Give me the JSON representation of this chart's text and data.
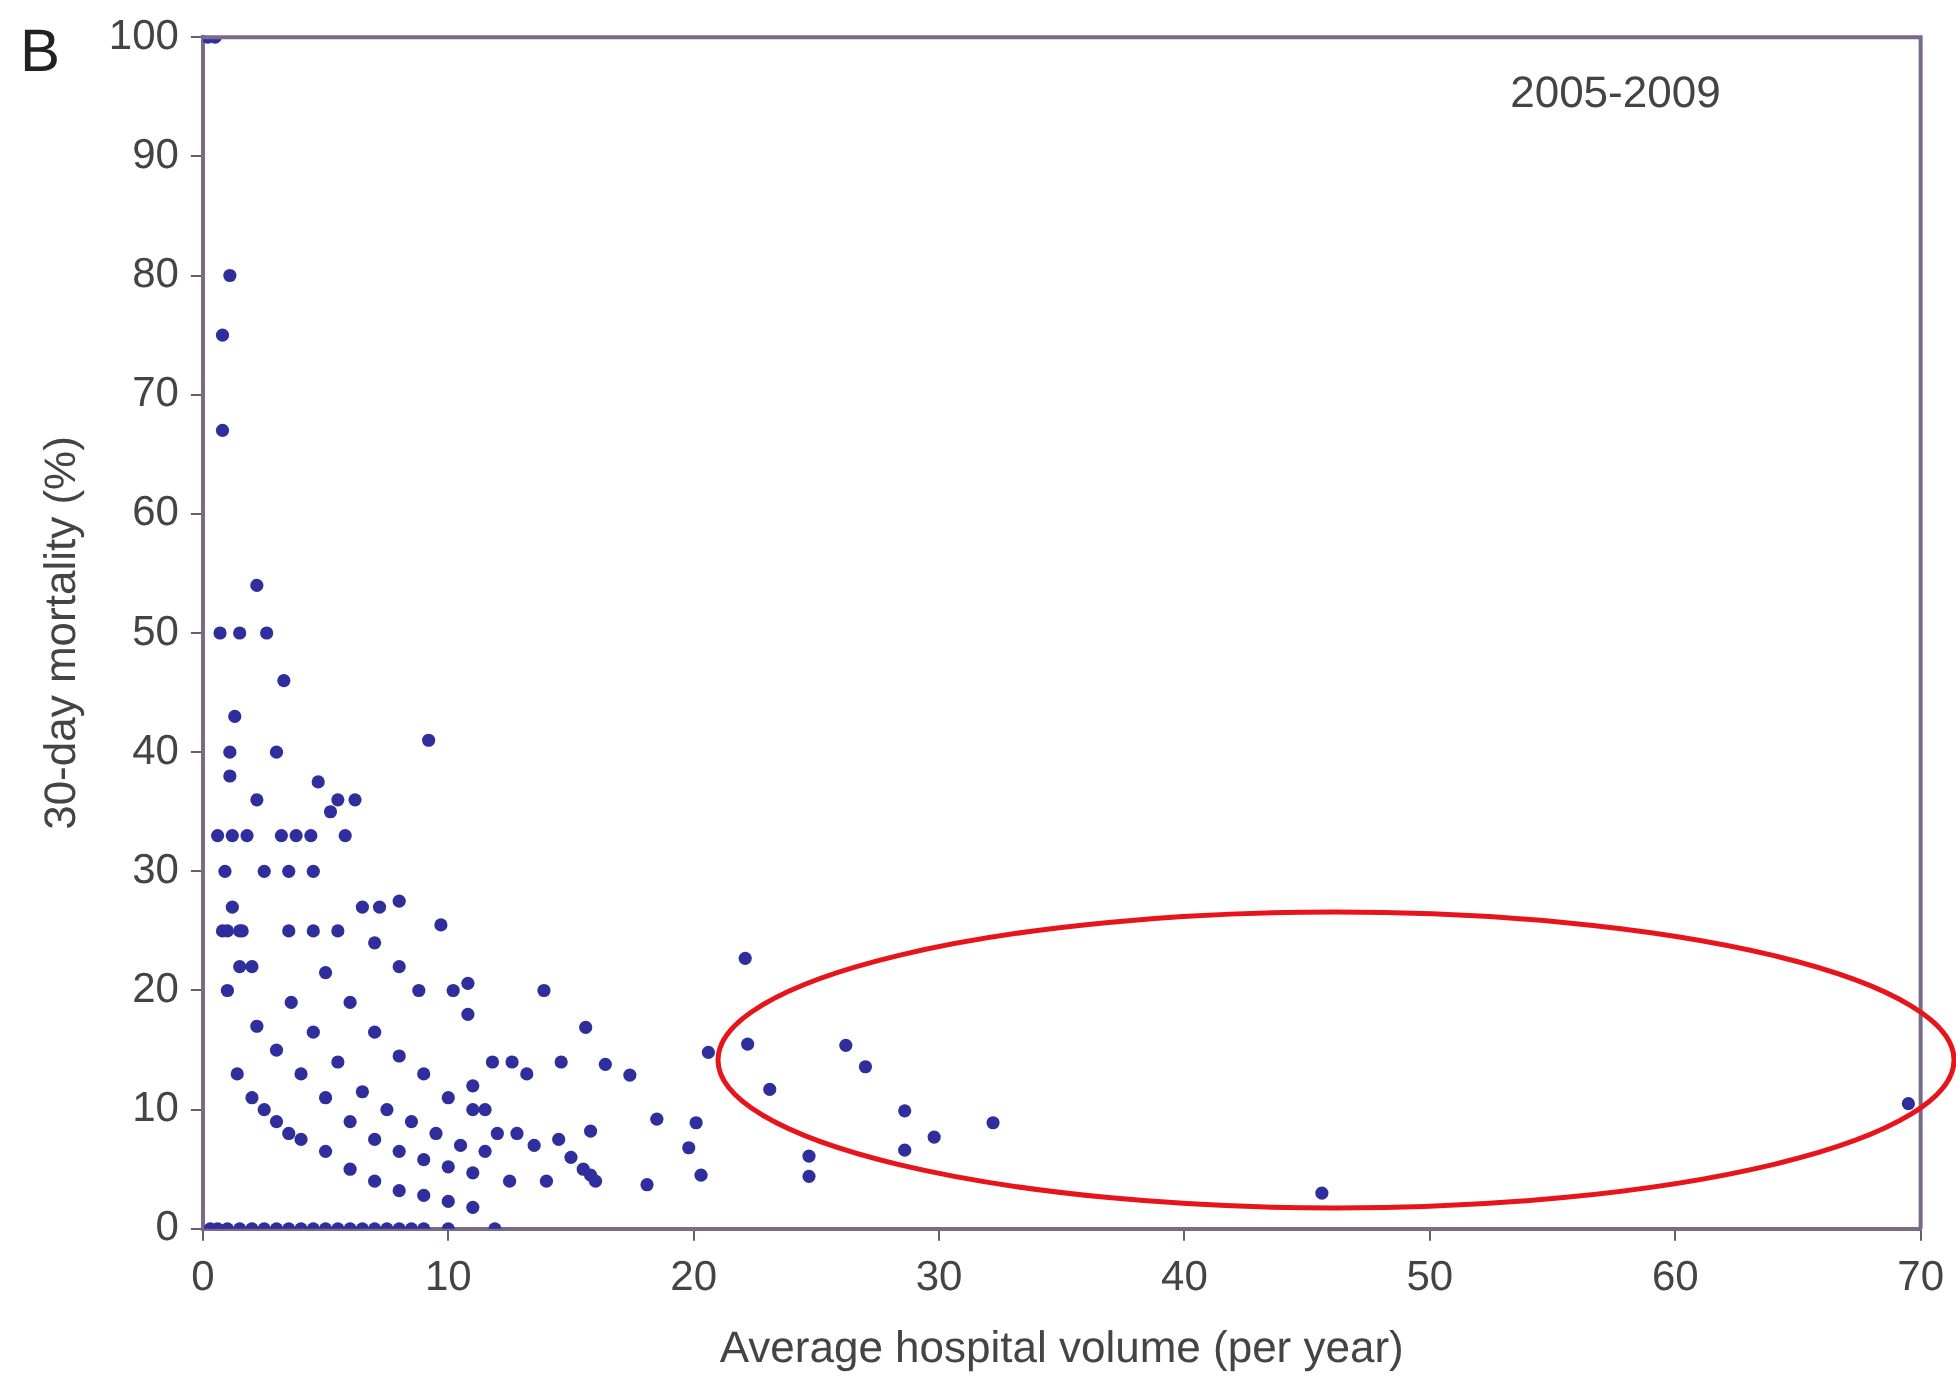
{
  "chart_data": {
    "type": "scatter",
    "xlabel": "Average hospital volume (per year)",
    "ylabel": "30-day mortality (%)",
    "annotations": [
      "B",
      "2005-2009"
    ],
    "xlim": [
      0,
      70
    ],
    "ylim": [
      0,
      100
    ],
    "xticks": [
      0,
      10,
      20,
      30,
      40,
      50,
      60,
      70
    ],
    "yticks": [
      0,
      10,
      20,
      30,
      40,
      50,
      60,
      70,
      80,
      90,
      100
    ],
    "grid": false,
    "legend": false,
    "marker": "circle",
    "series": [
      {
        "color": "#2e2e9c",
        "x": [
          0.2,
          0.5,
          1.1,
          0.8,
          0.8,
          2.2,
          0.7,
          1.5,
          2.6,
          3.3,
          1.3,
          1.1,
          3,
          9.2,
          4.7,
          5.5,
          0.6,
          1.2,
          1.8,
          3.2,
          3.8,
          4.4,
          2.5,
          3.5,
          4.5,
          5.8,
          0.8,
          1.5,
          3.5,
          4.5,
          5.5,
          6.5,
          7.2,
          8,
          5.2,
          6.2,
          2.2,
          1.1,
          1,
          1,
          1.5,
          0.9,
          1.2,
          1.6,
          2,
          1.4,
          2,
          2.5,
          3,
          3.5,
          4,
          5,
          6,
          7,
          8,
          9,
          10,
          11,
          2.2,
          3,
          4,
          5,
          6,
          7,
          8,
          9,
          10,
          11,
          3.6,
          4.5,
          5.5,
          6.5,
          7.5,
          8.5,
          9.5,
          10.5,
          11.5,
          5,
          6,
          7,
          8,
          9,
          10,
          11,
          7,
          8,
          8.8,
          0.3,
          0.6,
          1,
          1.5,
          2,
          2.5,
          3,
          3.5,
          4,
          4.5,
          5,
          5.5,
          6,
          6.5,
          7,
          7.5,
          8,
          8.5,
          9,
          10,
          11.9,
          11.8,
          12.6,
          13.2,
          12,
          12.8,
          13.5,
          14.5,
          15,
          15.5,
          14,
          16,
          11,
          11.5,
          12.5,
          10.2,
          10.8,
          13.9,
          9.7,
          10.8,
          14.6,
          22.1,
          15.6,
          16.4,
          17.4,
          20.6,
          22.2,
          26.2,
          27,
          23.1,
          18.5,
          20.1,
          19.8,
          20.3,
          18.1,
          24.7,
          24.7,
          28.6,
          28.6,
          29.8,
          32.2,
          45.6,
          69.5,
          15.8,
          15.8
        ],
        "values": [
          100,
          100,
          80,
          75,
          67,
          54,
          50,
          50,
          50,
          46,
          43,
          40,
          40,
          41,
          37.5,
          36,
          33,
          33,
          33,
          33,
          33,
          33,
          30,
          30,
          30,
          33,
          25,
          25,
          25,
          25,
          25,
          27,
          27,
          27.5,
          35,
          36,
          36,
          38,
          20,
          25,
          22,
          30,
          27,
          25,
          22,
          13,
          11,
          10,
          9,
          8,
          7.5,
          6.5,
          5,
          4,
          3.2,
          2.8,
          2.3,
          1.8,
          17,
          15,
          13,
          11,
          9,
          7.5,
          6.5,
          5.8,
          5.2,
          4.7,
          19,
          16.5,
          14,
          11.5,
          10,
          9,
          8,
          7,
          6.5,
          21.5,
          19,
          16.5,
          14.5,
          13,
          11,
          10,
          24,
          22,
          20,
          0,
          0,
          0,
          0,
          0,
          0,
          0,
          0,
          0,
          0,
          0,
          0,
          0,
          0,
          0,
          0,
          0,
          0,
          0,
          0,
          0,
          14,
          14,
          13,
          8,
          8,
          7,
          7.5,
          6,
          5,
          4,
          4,
          12,
          10,
          4,
          20,
          20.6,
          20,
          25.5,
          18,
          14,
          22.7,
          16.9,
          13.8,
          12.9,
          14.8,
          15.5,
          15.4,
          13.6,
          11.7,
          9.2,
          8.9,
          6.8,
          4.5,
          3.7,
          6.1,
          4.4,
          9.9,
          6.6,
          7.7,
          8.9,
          3,
          10.5,
          8.2,
          4.5
        ]
      }
    ]
  }
}
